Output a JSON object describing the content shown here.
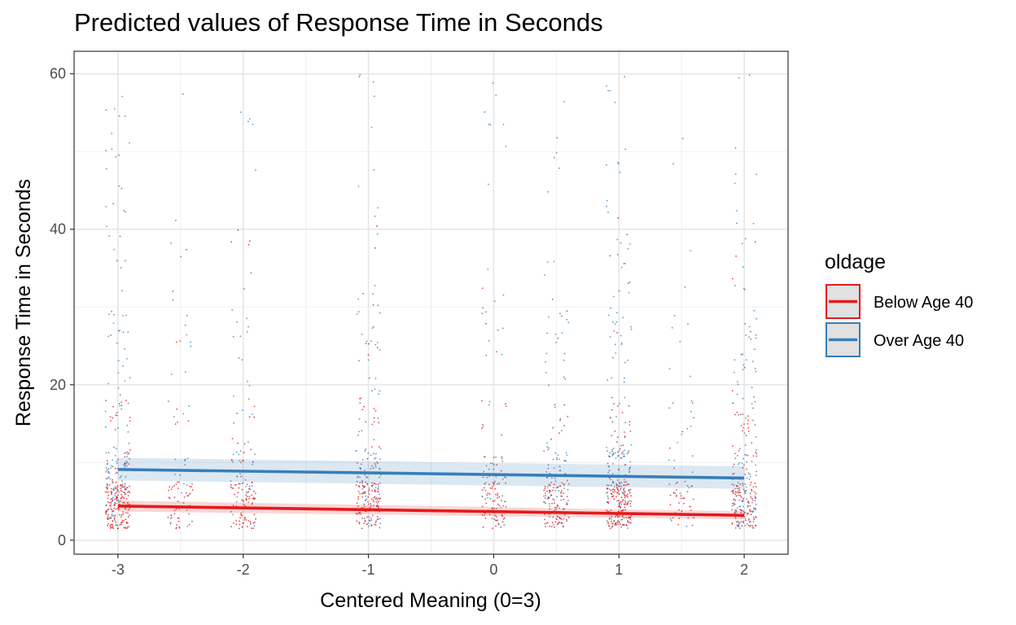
{
  "chart_data": {
    "type": "scatter",
    "title": "Predicted values of Response Time in Seconds",
    "xlabel": "Centered Meaning (0=3)",
    "ylabel": "Response Time in Seconds",
    "xlim": [
      -3.35,
      2.35
    ],
    "ylim": [
      -1.8,
      62.9
    ],
    "x_ticks": [
      -3,
      -2,
      -1,
      0,
      1,
      2
    ],
    "x_tick_labels": [
      "-3",
      "-2",
      "-1",
      "0",
      "1",
      "2"
    ],
    "y_ticks": [
      0,
      20,
      40,
      60
    ],
    "y_tick_labels": [
      "0",
      "20",
      "40",
      "60"
    ],
    "grid": true,
    "legend": {
      "title": "oldage",
      "position": "right",
      "entries": [
        "Below Age 40",
        "Over Age 40"
      ]
    },
    "x_groups": [
      -3,
      -2.5,
      -2,
      -1,
      0,
      0.5,
      1,
      1.5,
      2
    ],
    "series": [
      {
        "name": "Below Age 40",
        "color": "#E41A1C",
        "fit": {
          "x": [
            -3,
            2
          ],
          "y": [
            4.4,
            3.2
          ]
        },
        "ci": {
          "lower": [
            3.7,
            2.7
          ],
          "upper": [
            5.1,
            3.7
          ]
        }
      },
      {
        "name": "Over Age 40",
        "color": "#377EB8",
        "fit": {
          "x": [
            -3,
            2
          ],
          "y": [
            9.1,
            8.0
          ]
        },
        "ci": {
          "lower": [
            7.7,
            6.6
          ],
          "upper": [
            10.6,
            9.5
          ]
        }
      }
    ]
  }
}
